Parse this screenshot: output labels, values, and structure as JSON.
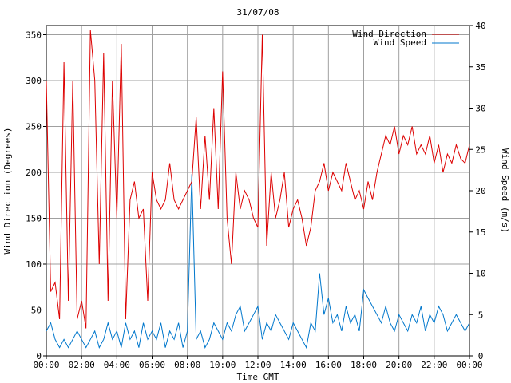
{
  "chart_data": {
    "type": "line",
    "title": "31/07/08",
    "xlabel": "Time GMT",
    "ylabel_left": "Wind Direction (Degrees)",
    "ylabel_right": "Wind Speed (m/s)",
    "x_ticks": [
      "00:00",
      "02:00",
      "04:00",
      "06:00",
      "08:00",
      "10:00",
      "12:00",
      "14:00",
      "16:00",
      "18:00",
      "20:00",
      "22:00",
      "00:00"
    ],
    "x_range_hours": [
      0,
      24
    ],
    "y_left_range": [
      0,
      360
    ],
    "y_left_ticks": [
      "0",
      "50",
      "100",
      "150",
      "200",
      "250",
      "300",
      "350"
    ],
    "y_right_range": [
      0,
      40
    ],
    "y_right_ticks": [
      "0",
      "5",
      "10",
      "15",
      "20",
      "25",
      "30",
      "35",
      "40"
    ],
    "grid": true,
    "legend_position": "top-right",
    "series": [
      {
        "name": "Wind Direction",
        "axis": "left",
        "color": "#dd0000",
        "x": [
          0,
          0.25,
          0.5,
          0.75,
          1,
          1.25,
          1.5,
          1.75,
          2,
          2.25,
          2.5,
          2.75,
          3,
          3.25,
          3.5,
          3.75,
          4,
          4.25,
          4.5,
          4.75,
          5,
          5.25,
          5.5,
          5.75,
          6,
          6.25,
          6.5,
          6.75,
          7,
          7.25,
          7.5,
          7.75,
          8,
          8.25,
          8.5,
          8.75,
          9,
          9.25,
          9.5,
          9.75,
          10,
          10.25,
          10.5,
          10.75,
          11,
          11.25,
          11.5,
          11.75,
          12,
          12.25,
          12.5,
          12.75,
          13,
          13.25,
          13.5,
          13.75,
          14,
          14.25,
          14.5,
          14.75,
          15,
          15.25,
          15.5,
          15.75,
          16,
          16.25,
          16.5,
          16.75,
          17,
          17.25,
          17.5,
          17.75,
          18,
          18.25,
          18.5,
          18.75,
          19,
          19.25,
          19.5,
          19.75,
          20,
          20.25,
          20.5,
          20.75,
          21,
          21.25,
          21.5,
          21.75,
          22,
          22.25,
          22.5,
          22.75,
          23,
          23.25,
          23.5,
          23.75,
          24
        ],
        "values": [
          300,
          70,
          80,
          40,
          320,
          60,
          300,
          40,
          60,
          30,
          355,
          300,
          100,
          330,
          60,
          300,
          150,
          340,
          40,
          170,
          190,
          150,
          160,
          60,
          200,
          170,
          160,
          170,
          210,
          170,
          160,
          170,
          180,
          190,
          260,
          160,
          240,
          170,
          270,
          160,
          310,
          150,
          100,
          200,
          160,
          180,
          170,
          150,
          140,
          350,
          120,
          200,
          150,
          170,
          200,
          140,
          160,
          170,
          150,
          120,
          140,
          180,
          190,
          210,
          180,
          200,
          190,
          180,
          210,
          190,
          170,
          180,
          160,
          190,
          170,
          200,
          220,
          240,
          230,
          250,
          220,
          240,
          230,
          250,
          220,
          230,
          220,
          240,
          210,
          230,
          200,
          220,
          210,
          230,
          215,
          210,
          230
        ]
      },
      {
        "name": "Wind Speed",
        "axis": "right",
        "color": "#0077cc",
        "x": [
          0,
          0.25,
          0.5,
          0.75,
          1,
          1.25,
          1.5,
          1.75,
          2,
          2.25,
          2.5,
          2.75,
          3,
          3.25,
          3.5,
          3.75,
          4,
          4.25,
          4.5,
          4.75,
          5,
          5.25,
          5.5,
          5.75,
          6,
          6.25,
          6.5,
          6.75,
          7,
          7.25,
          7.5,
          7.75,
          8,
          8.25,
          8.5,
          8.75,
          9,
          9.25,
          9.5,
          9.75,
          10,
          10.25,
          10.5,
          10.75,
          11,
          11.25,
          11.5,
          11.75,
          12,
          12.25,
          12.5,
          12.75,
          13,
          13.25,
          13.5,
          13.75,
          14,
          14.25,
          14.5,
          14.75,
          15,
          15.25,
          15.5,
          15.75,
          16,
          16.25,
          16.5,
          16.75,
          17,
          17.25,
          17.5,
          17.75,
          18,
          18.25,
          18.5,
          18.75,
          19,
          19.25,
          19.5,
          19.75,
          20,
          20.25,
          20.5,
          20.75,
          21,
          21.25,
          21.5,
          21.75,
          22,
          22.25,
          22.5,
          22.75,
          23,
          23.25,
          23.5,
          23.75,
          24
        ],
        "values": [
          3,
          4,
          2,
          1,
          2,
          1,
          2,
          3,
          2,
          1,
          2,
          3,
          1,
          2,
          4,
          2,
          3,
          1,
          4,
          2,
          3,
          1,
          4,
          2,
          3,
          2,
          4,
          1,
          3,
          2,
          4,
          1,
          3,
          22,
          2,
          3,
          1,
          2,
          4,
          3,
          2,
          4,
          3,
          5,
          6,
          3,
          4,
          5,
          6,
          2,
          4,
          3,
          5,
          4,
          3,
          2,
          4,
          3,
          2,
          1,
          4,
          3,
          10,
          5,
          7,
          4,
          5,
          3,
          6,
          4,
          5,
          3,
          8,
          7,
          6,
          5,
          4,
          6,
          4,
          3,
          5,
          4,
          3,
          5,
          4,
          6,
          3,
          5,
          4,
          6,
          5,
          3,
          4,
          5,
          4,
          3,
          4
        ]
      }
    ]
  }
}
